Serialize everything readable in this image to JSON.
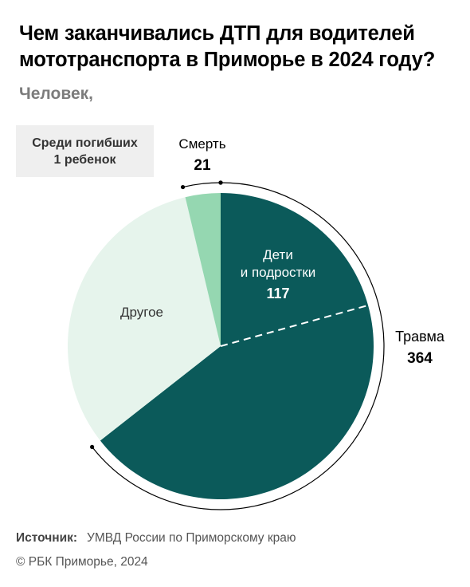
{
  "title": "Чем заканчивались ДТП для водителей мототранспорта в Приморье в 2024 году?",
  "subtitle": "Человек,",
  "note": {
    "line1": "Среди погибших",
    "line2": "1 ребенок"
  },
  "source": {
    "label": "Источник:",
    "value": "УМВД России по Приморскому краю"
  },
  "copyright": "© РБК Приморье, 2024",
  "colors": {
    "trauma": "#0b5a5a",
    "death": "#95d7b1",
    "other": "#e6f4ec"
  },
  "chart_data": {
    "type": "pie",
    "unit": "Человек",
    "slices": [
      {
        "name": "Травма",
        "value": 364,
        "label": "364",
        "sub": {
          "name": "Дети и подростки",
          "line1": "Дети",
          "line2": "и подростки",
          "value": 117,
          "label": "117"
        }
      },
      {
        "name": "Другое",
        "value": 180,
        "estimated": true
      },
      {
        "name": "Смерть",
        "value": 21,
        "label": "21"
      }
    ]
  }
}
